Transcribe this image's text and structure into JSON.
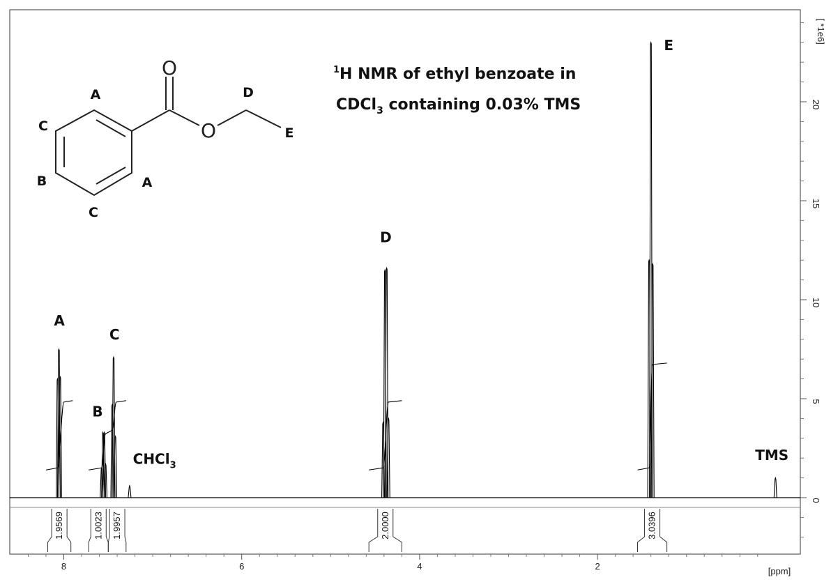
{
  "title": {
    "prefix_sup": "1",
    "line1": "H NMR of ethyl benzoate in",
    "line2_pre": "CDCl",
    "line2_sub": "3",
    "line2_post": " containing 0.03% TMS"
  },
  "structure": {
    "oxygen_carbonyl": "O",
    "oxygen_ester": "O",
    "labels": {
      "A_top": "A",
      "A_right": "A",
      "B": "B",
      "C_top": "C",
      "C_bottom": "C",
      "D": "D",
      "E": "E"
    }
  },
  "chart_data": {
    "type": "line",
    "xlabel": "[ppm]",
    "ylabel": "[ *1e6]",
    "x_axis_reversed": true,
    "xlim": [
      8.5,
      -0.2
    ],
    "ylim": [
      -2.9,
      24.3
    ],
    "x_ticks": [
      8,
      6,
      4,
      2
    ],
    "y_ticks": [
      0,
      5,
      10,
      15,
      20
    ],
    "series": [
      {
        "peaks": [
          {
            "label": "A",
            "center_ppm": 8.05,
            "lines": [
              {
                "ppm": 8.07,
                "height": 6.0
              },
              {
                "ppm": 8.055,
                "height": 7.5
              },
              {
                "ppm": 8.04,
                "height": 6.1
              }
            ]
          },
          {
            "label": "B",
            "center_ppm": 7.55,
            "lines": [
              {
                "ppm": 7.575,
                "height": 1.5
              },
              {
                "ppm": 7.56,
                "height": 3.3
              },
              {
                "ppm": 7.545,
                "height": 3.3
              },
              {
                "ppm": 7.53,
                "height": 1.7
              }
            ]
          },
          {
            "label": "C",
            "center_ppm": 7.43,
            "lines": [
              {
                "ppm": 7.455,
                "height": 4.7
              },
              {
                "ppm": 7.44,
                "height": 7.1
              },
              {
                "ppm": 7.42,
                "height": 3.1
              }
            ]
          },
          {
            "label": "CHCl3",
            "center_ppm": 7.26,
            "lines": [
              {
                "ppm": 7.26,
                "height": 0.6
              }
            ]
          },
          {
            "label": "D",
            "center_ppm": 4.38,
            "lines": [
              {
                "ppm": 4.41,
                "height": 3.8
              },
              {
                "ppm": 4.39,
                "height": 11.5
              },
              {
                "ppm": 4.37,
                "height": 11.6
              },
              {
                "ppm": 4.35,
                "height": 4.0
              }
            ]
          },
          {
            "label": "E",
            "center_ppm": 1.4,
            "lines": [
              {
                "ppm": 1.42,
                "height": 12.0
              },
              {
                "ppm": 1.4,
                "height": 23.0
              },
              {
                "ppm": 1.38,
                "height": 11.8
              }
            ]
          },
          {
            "label": "TMS",
            "center_ppm": 0.0,
            "lines": [
              {
                "ppm": 0.0,
                "height": 1.0
              }
            ]
          }
        ]
      }
    ],
    "integrals": [
      {
        "value": "1.9569",
        "from_ppm": 8.18,
        "to_ppm": 7.92
      },
      {
        "value": "1.0023",
        "from_ppm": 7.72,
        "to_ppm": 7.5
      },
      {
        "value": "1.9957",
        "from_ppm": 7.5,
        "to_ppm": 7.3
      },
      {
        "value": "2.0000",
        "from_ppm": 4.57,
        "to_ppm": 4.2
      },
      {
        "value": "3.0396",
        "from_ppm": 1.55,
        "to_ppm": 1.22
      }
    ],
    "annotations": [
      {
        "text": "A",
        "ppm": 8.05,
        "height": 8.7
      },
      {
        "text": "B",
        "ppm": 7.62,
        "height": 4.1
      },
      {
        "text": "C",
        "ppm": 7.43,
        "height": 8.0
      },
      {
        "text_pre": "CHCl",
        "text_sub": "3",
        "ppm": 6.98,
        "height": 1.7
      },
      {
        "text": "D",
        "ppm": 4.38,
        "height": 12.9
      },
      {
        "text": "E",
        "ppm": 1.2,
        "height": 22.6
      },
      {
        "text": "TMS",
        "ppm": 0.04,
        "height": 1.9
      }
    ]
  }
}
